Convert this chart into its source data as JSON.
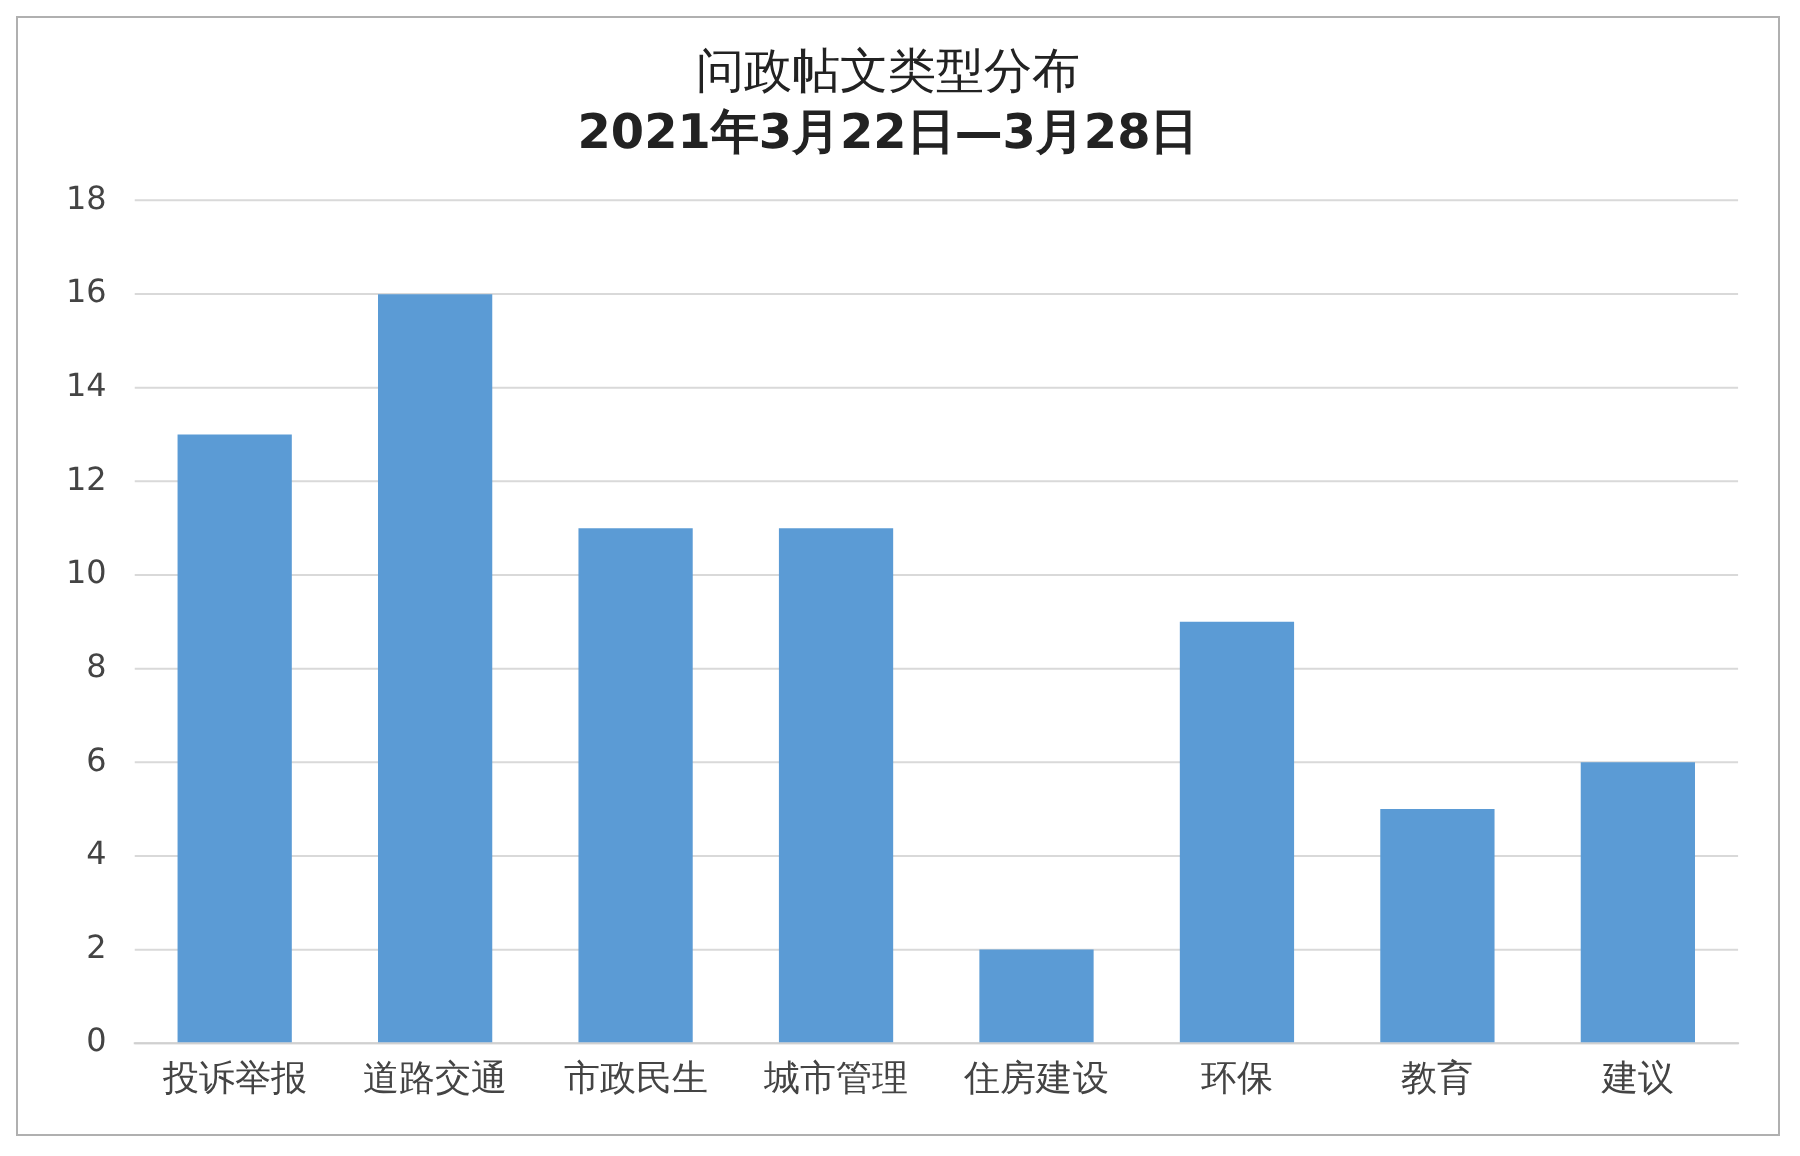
{
  "chart_data": {
    "type": "bar",
    "title": "问政帖文类型分布",
    "subtitle": "2021年3月22日—3月28日",
    "categories": [
      "投诉举报",
      "道路交通",
      "市政民生",
      "城市管理",
      "住房建设",
      "环保",
      "教育",
      "建议"
    ],
    "values": [
      13,
      16,
      11,
      11,
      2,
      9,
      5,
      6
    ],
    "color": "#5b9bd5",
    "ylim": [
      0,
      18
    ],
    "yticks": [
      0,
      2,
      4,
      6,
      8,
      10,
      12,
      14,
      16,
      18
    ],
    "grid": "y",
    "legend": false
  }
}
